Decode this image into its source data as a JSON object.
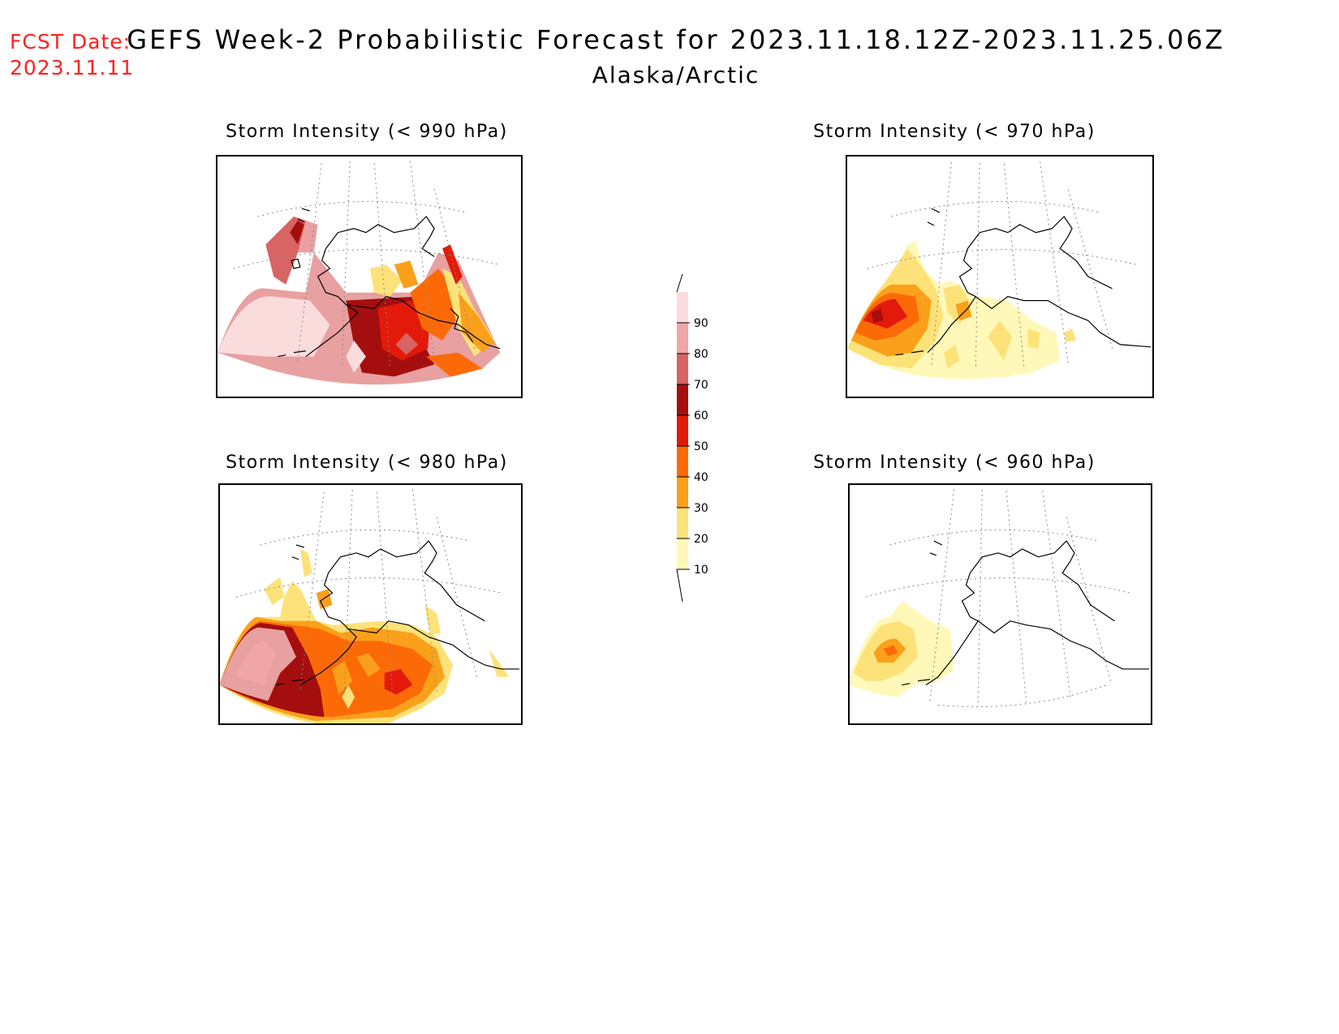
{
  "header": {
    "fcst_label": "FCST Date:",
    "fcst_date": "2023.11.11",
    "title": "GEFS Week-2 Probabilistic Forecast for 2023.11.18.12Z-2023.11.25.06Z",
    "region": "Alaska/Arctic"
  },
  "panels": [
    {
      "title": "Storm Intensity (< 990 hPa)",
      "threshold_hpa": 990,
      "max_level": 90
    },
    {
      "title": "Storm Intensity (< 970 hPa)",
      "threshold_hpa": 970,
      "max_level": 60
    },
    {
      "title": "Storm Intensity (< 980 hPa)",
      "threshold_hpa": 980,
      "max_level": 80
    },
    {
      "title": "Storm Intensity (< 960 hPa)",
      "threshold_hpa": 960,
      "max_level": 40
    }
  ],
  "colorbar": {
    "levels": [
      "10",
      "20",
      "30",
      "40",
      "50",
      "60",
      "70",
      "80",
      "90"
    ],
    "colors": [
      "#fff8b8",
      "#fde27a",
      "#fba01a",
      "#fc6a08",
      "#e31a0a",
      "#a50e0e",
      "#d86464",
      "#f0a6a6",
      "#fbdcdc"
    ]
  }
}
